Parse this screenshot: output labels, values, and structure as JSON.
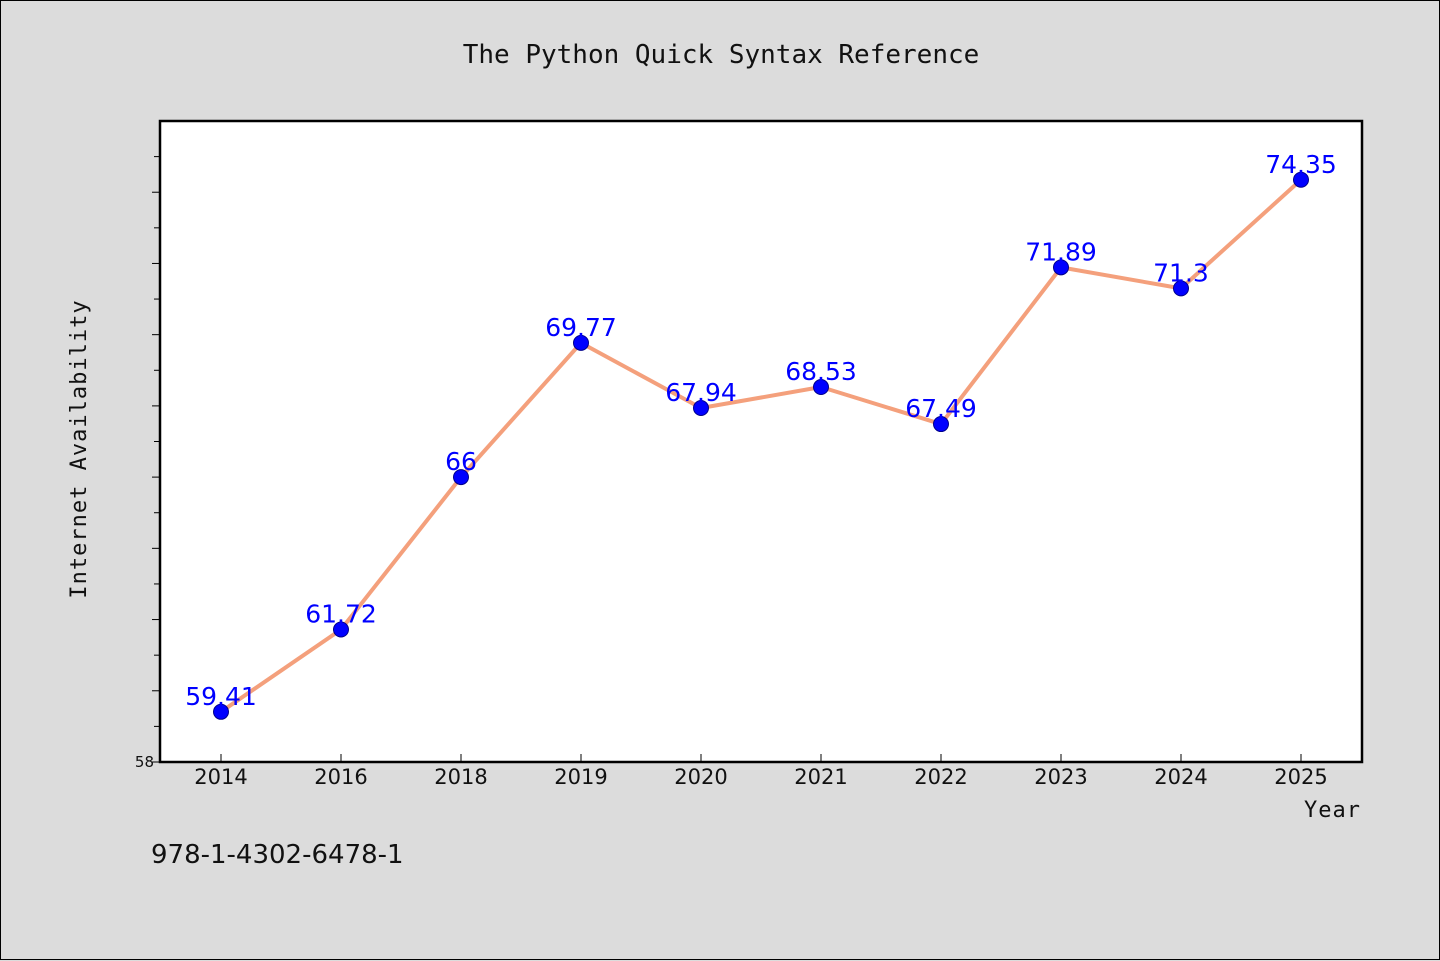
{
  "chart_data": {
    "type": "line",
    "title": "The Python Quick Syntax Reference",
    "xlabel": "Year",
    "ylabel": "Internet Availability",
    "categories": [
      "2014",
      "2016",
      "2018",
      "2019",
      "2020",
      "2021",
      "2022",
      "2023",
      "2024",
      "2025"
    ],
    "series": [
      {
        "values": [
          59.41,
          61.72,
          66,
          69.77,
          67.94,
          68.53,
          67.49,
          71.89,
          71.3,
          74.35
        ],
        "labels": [
          "59.41",
          "61.72",
          "66",
          "69.77",
          "67.94",
          "68.53",
          "67.49",
          "71.89",
          "71.3",
          "74.35"
        ]
      }
    ],
    "ylim": [
      58,
      76
    ],
    "yticks": [
      "58"
    ],
    "grid": false,
    "line_color": "#f4a07c",
    "marker_color": "#0000ff",
    "label_color": "#0000ff"
  },
  "footnote": "978-1-4302-6478-1"
}
